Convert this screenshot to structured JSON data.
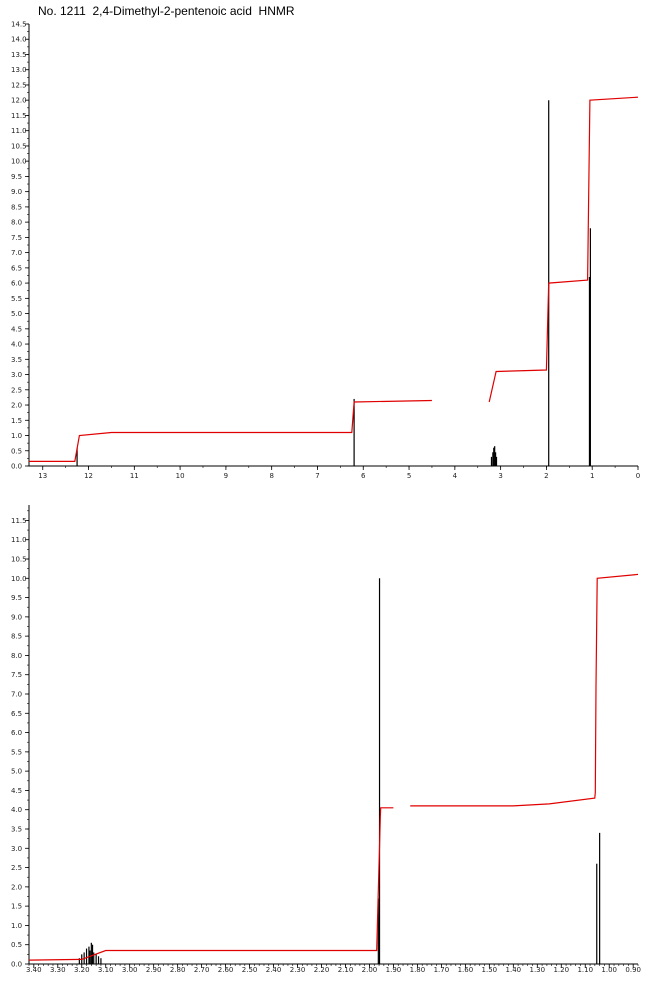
{
  "title": "No. 1211  2,4-Dimethyl-2-pentenoic acid  HNMR",
  "chart_data": [
    {
      "type": "line",
      "title": "No. 1211  2,4-Dimethyl-2-pentenoic acid  HNMR",
      "xlabel": "",
      "ylabel": "",
      "x_reversed": true,
      "xlim": [
        13.3,
        0.0
      ],
      "ylim": [
        0.0,
        14.5
      ],
      "x_ticks": [
        "13",
        "12",
        "11",
        "10",
        "9",
        "8",
        "7",
        "6",
        "5",
        "4",
        "3",
        "2",
        "1",
        "0"
      ],
      "x_tick_values": [
        13,
        12,
        11,
        10,
        9,
        8,
        7,
        6,
        5,
        4,
        3,
        2,
        1,
        0
      ],
      "y_ticks": [
        "0.0",
        "0.5",
        "1.0",
        "1.5",
        "2.0",
        "2.5",
        "3.0",
        "3.5",
        "4.0",
        "4.5",
        "5.0",
        "5.5",
        "6.0",
        "6.5",
        "7.0",
        "7.5",
        "8.0",
        "8.5",
        "9.0",
        "9.5",
        "10.0",
        "10.5",
        "11.0",
        "11.5",
        "12.0",
        "12.5",
        "13.0",
        "13.5",
        "14.0",
        "14.5"
      ],
      "y_tick_values": [
        0,
        0.5,
        1,
        1.5,
        2,
        2.5,
        3,
        3.5,
        4,
        4.5,
        5,
        5.5,
        6,
        6.5,
        7,
        7.5,
        8,
        8.5,
        9,
        9.5,
        10,
        10.5,
        11,
        11.5,
        12,
        12.5,
        13,
        13.5,
        14,
        14.5
      ],
      "peaks": [
        {
          "x": 12.25,
          "y": 0.6
        },
        {
          "x": 6.2,
          "y": 2.2
        },
        {
          "x": 3.2,
          "y": 0.3
        },
        {
          "x": 3.17,
          "y": 0.45
        },
        {
          "x": 3.15,
          "y": 0.6
        },
        {
          "x": 3.13,
          "y": 0.65
        },
        {
          "x": 3.11,
          "y": 0.45
        },
        {
          "x": 3.09,
          "y": 0.3
        },
        {
          "x": 1.95,
          "y": 12.0
        },
        {
          "x": 1.06,
          "y": 6.2
        },
        {
          "x": 1.04,
          "y": 7.8
        }
      ],
      "integration_segments": [
        [
          [
            13.3,
            0.15
          ],
          [
            12.3,
            0.15
          ],
          [
            12.2,
            1.0
          ],
          [
            11.5,
            1.1
          ],
          [
            8.0,
            1.1
          ],
          [
            6.25,
            1.1
          ],
          [
            6.2,
            2.1
          ],
          [
            4.5,
            2.15
          ]
        ],
        [
          [
            3.25,
            2.1
          ],
          [
            3.1,
            3.1
          ],
          [
            2.0,
            3.15
          ],
          [
            1.95,
            6.0
          ],
          [
            1.1,
            6.1
          ],
          [
            1.05,
            12.0
          ],
          [
            0.0,
            12.1
          ]
        ]
      ]
    },
    {
      "type": "line",
      "title": "",
      "xlabel": "",
      "ylabel": "",
      "x_reversed": true,
      "xlim": [
        3.42,
        0.88
      ],
      "ylim": [
        0.0,
        11.9
      ],
      "x_ticks": [
        "3.40",
        "3.30",
        "3.20",
        "3.10",
        "3.00",
        "2.90",
        "2.80",
        "2.70",
        "2.60",
        "2.50",
        "2.40",
        "2.30",
        "2.20",
        "2.10",
        "2.00",
        "1.90",
        "1.80",
        "1.70",
        "1.60",
        "1.50",
        "1.40",
        "1.30",
        "1.20",
        "1.10",
        "1.00",
        "0.90"
      ],
      "x_tick_values": [
        3.4,
        3.3,
        3.2,
        3.1,
        3.0,
        2.9,
        2.8,
        2.7,
        2.6,
        2.5,
        2.4,
        2.3,
        2.2,
        2.1,
        2.0,
        1.9,
        1.8,
        1.7,
        1.6,
        1.5,
        1.4,
        1.3,
        1.2,
        1.1,
        1.0,
        0.9
      ],
      "y_ticks": [
        "0.0",
        "0.5",
        "1.0",
        "1.5",
        "2.0",
        "2.5",
        "3.0",
        "3.5",
        "4.0",
        "4.5",
        "5.0",
        "5.5",
        "6.0",
        "6.5",
        "7.0",
        "7.5",
        "8.0",
        "8.5",
        "9.0",
        "9.5",
        "10.0",
        "10.5",
        "11.0",
        "11.5"
      ],
      "y_tick_values": [
        0,
        0.5,
        1,
        1.5,
        2,
        2.5,
        3,
        3.5,
        4,
        4.5,
        5,
        5.5,
        6,
        6.5,
        7,
        7.5,
        8,
        8.5,
        9,
        9.5,
        10,
        10.5,
        11,
        11.5
      ],
      "peaks": [
        {
          "x": 3.21,
          "y": 0.15
        },
        {
          "x": 3.2,
          "y": 0.25
        },
        {
          "x": 3.19,
          "y": 0.3
        },
        {
          "x": 3.18,
          "y": 0.4
        },
        {
          "x": 3.17,
          "y": 0.45
        },
        {
          "x": 3.165,
          "y": 0.35
        },
        {
          "x": 3.16,
          "y": 0.55
        },
        {
          "x": 3.155,
          "y": 0.5
        },
        {
          "x": 3.15,
          "y": 0.3
        },
        {
          "x": 3.14,
          "y": 0.25
        },
        {
          "x": 3.13,
          "y": 0.2
        },
        {
          "x": 3.12,
          "y": 0.15
        },
        {
          "x": 1.963,
          "y": 1.7
        },
        {
          "x": 1.958,
          "y": 10.0
        },
        {
          "x": 1.052,
          "y": 2.6
        },
        {
          "x": 1.04,
          "y": 3.4
        }
      ],
      "integration_segments": [
        [
          [
            3.42,
            0.1
          ],
          [
            3.2,
            0.12
          ],
          [
            3.1,
            0.35
          ],
          [
            1.97,
            0.35
          ],
          [
            1.955,
            3.8
          ],
          [
            1.953,
            4.05
          ],
          [
            1.9,
            4.05
          ]
        ],
        [
          [
            1.83,
            4.1
          ],
          [
            1.7,
            4.1
          ],
          [
            1.4,
            4.1
          ],
          [
            1.25,
            4.15
          ],
          [
            1.06,
            4.3
          ],
          [
            1.058,
            4.45
          ],
          [
            1.055,
            7.2
          ],
          [
            1.05,
            10.0
          ],
          [
            0.88,
            10.1
          ]
        ]
      ]
    }
  ]
}
